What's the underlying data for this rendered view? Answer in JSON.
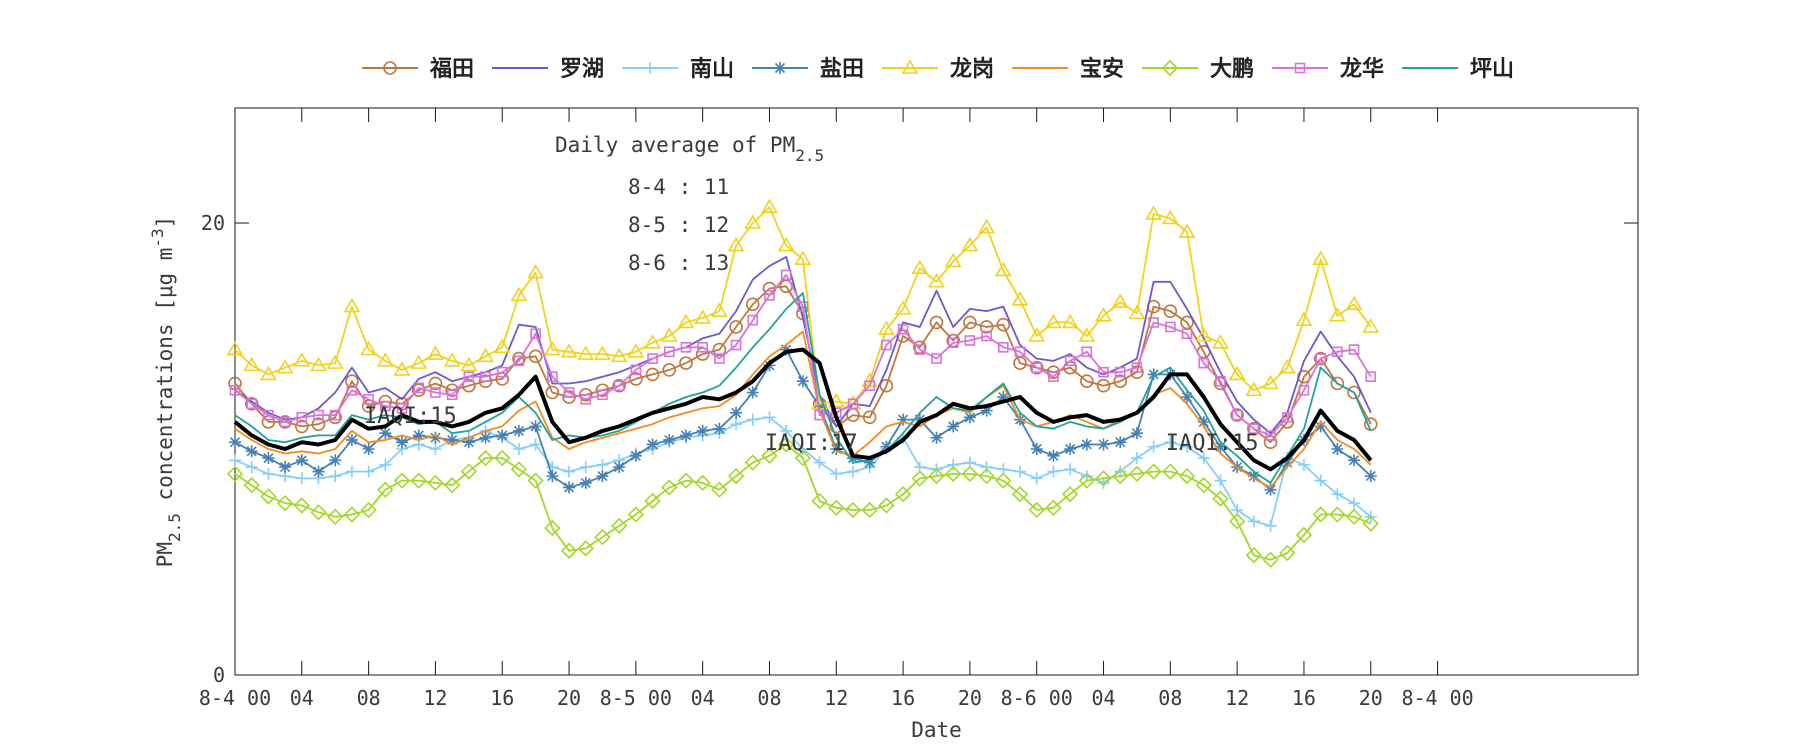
{
  "chart_data": {
    "type": "line",
    "xlabel": "Date",
    "ylabel_main": "PM",
    "ylabel_sub": "2.5",
    "ylabel_rest": " concentrations [μg m",
    "ylabel_sup": "-3",
    "ylabel_end": "]",
    "ylim": [
      0,
      25
    ],
    "xlim": [
      0,
      69
    ],
    "yticks": [
      {
        "v": 0,
        "label": "0"
      },
      {
        "v": 20,
        "label": "20"
      }
    ],
    "xticks": [
      {
        "v": 0,
        "label": "8-4 00"
      },
      {
        "v": 4,
        "label": "04"
      },
      {
        "v": 8,
        "label": "08"
      },
      {
        "v": 12,
        "label": "12"
      },
      {
        "v": 16,
        "label": "16"
      },
      {
        "v": 20,
        "label": "20"
      },
      {
        "v": 24,
        "label": "8-5 00"
      },
      {
        "v": 28,
        "label": "04"
      },
      {
        "v": 32,
        "label": "08"
      },
      {
        "v": 36,
        "label": "12"
      },
      {
        "v": 40,
        "label": "16"
      },
      {
        "v": 44,
        "label": "20"
      },
      {
        "v": 48,
        "label": "8-6 00"
      },
      {
        "v": 52,
        "label": "04"
      },
      {
        "v": 56,
        "label": "08"
      },
      {
        "v": 60,
        "label": "12"
      },
      {
        "v": 64,
        "label": "16"
      },
      {
        "v": 68,
        "label": "20"
      },
      {
        "v": 72,
        "label": "8-4 00"
      }
    ],
    "grid": false,
    "legend_position": "top",
    "annotation": {
      "title_main": "Daily average of PM",
      "title_sub": "2.5",
      "lines": [
        "8-4 : 11",
        "8-5 : 12",
        "8-6 : 13"
      ]
    },
    "iaqi_labels": [
      {
        "x": 10.5,
        "y": 11.5,
        "text": "IAQI:15"
      },
      {
        "x": 34.5,
        "y": 10.3,
        "text": "IAQI:17"
      },
      {
        "x": 58.5,
        "y": 10.3,
        "text": "IAQI:15"
      }
    ],
    "mean_series": {
      "color": "#000000",
      "values": [
        11.2,
        10.6,
        10.2,
        10.0,
        10.3,
        10.2,
        10.4,
        11.3,
        10.9,
        11.0,
        11.5,
        11.2,
        11.2,
        11.0,
        11.2,
        11.6,
        11.8,
        12.4,
        13.2,
        11.2,
        10.3,
        10.5,
        10.8,
        11.0,
        11.3,
        11.6,
        11.8,
        12.0,
        12.3,
        12.2,
        12.5,
        13.0,
        13.8,
        14.3,
        14.4,
        13.8,
        11.4,
        9.7,
        9.6,
        9.9,
        10.4,
        11.2,
        11.5,
        12.0,
        11.8,
        11.9,
        12.1,
        12.3,
        11.6,
        11.2,
        11.4,
        11.5,
        11.2,
        11.3,
        11.6,
        12.3,
        13.3,
        13.3,
        12.3,
        11.1,
        10.3,
        9.5,
        9.1,
        9.6,
        10.4,
        11.7,
        10.8,
        10.4,
        9.5
      ]
    },
    "series": [
      {
        "name": "福田",
        "color": "#c0763f",
        "marker": "circle",
        "values": [
          12.9,
          12.0,
          11.2,
          11.2,
          11.0,
          11.1,
          11.4,
          13.0,
          11.9,
          12.1,
          12.0,
          12.6,
          12.9,
          12.6,
          12.8,
          13.0,
          13.1,
          14.0,
          14.1,
          12.5,
          12.3,
          12.4,
          12.6,
          12.8,
          13.1,
          13.3,
          13.5,
          13.8,
          14.2,
          14.4,
          15.4,
          16.4,
          17.1,
          17.2,
          16.0,
          12.0,
          11.0,
          11.5,
          11.4,
          12.8,
          15.0,
          14.5,
          15.6,
          14.8,
          15.6,
          15.4,
          15.5,
          13.8,
          13.6,
          13.4,
          13.6,
          13.0,
          12.8,
          13.0,
          13.4,
          16.3,
          16.1,
          15.6,
          14.3,
          12.9,
          11.5,
          10.9,
          10.3,
          11.2,
          13.2,
          14.0,
          12.9,
          12.5,
          11.1
        ]
      },
      {
        "name": "罗湖",
        "color": "#6a5acd",
        "marker": null,
        "values": [
          12.6,
          12.1,
          11.6,
          11.3,
          11.4,
          11.8,
          12.5,
          13.6,
          12.5,
          12.7,
          12.2,
          13.1,
          13.4,
          13.0,
          13.2,
          13.4,
          13.7,
          15.5,
          15.4,
          12.9,
          12.9,
          13.0,
          13.2,
          13.4,
          13.7,
          14.0,
          14.3,
          14.5,
          14.9,
          15.1,
          16.1,
          17.5,
          18.1,
          18.5,
          15.8,
          12.4,
          11.0,
          12.0,
          11.9,
          13.5,
          15.6,
          15.4,
          17.0,
          15.4,
          16.2,
          16.1,
          16.3,
          14.6,
          14.0,
          13.9,
          14.2,
          13.6,
          13.3,
          13.6,
          14.0,
          17.4,
          17.4,
          16.2,
          14.9,
          13.4,
          12.1,
          11.3,
          10.7,
          11.6,
          13.9,
          15.2,
          14.1,
          13.2,
          11.6
        ]
      },
      {
        "name": "南山",
        "color": "#87cefa",
        "marker": "plus",
        "values": [
          9.5,
          9.2,
          8.9,
          8.8,
          8.7,
          8.7,
          8.8,
          9.0,
          9.0,
          9.3,
          10.0,
          10.2,
          10.0,
          10.4,
          10.5,
          10.8,
          10.5,
          10.0,
          10.2,
          9.2,
          9.0,
          9.2,
          9.3,
          9.5,
          9.8,
          10.0,
          10.3,
          10.5,
          10.6,
          10.7,
          11.1,
          11.3,
          11.4,
          10.8,
          10.0,
          9.4,
          8.9,
          9.0,
          9.2,
          10.0,
          10.5,
          9.2,
          9.1,
          9.3,
          9.4,
          9.2,
          9.1,
          9.0,
          8.7,
          9.0,
          9.1,
          8.8,
          8.5,
          9.0,
          9.6,
          10.1,
          10.3,
          10.1,
          9.6,
          8.6,
          7.3,
          6.8,
          6.6,
          9.6,
          9.3,
          8.6,
          8.0,
          7.6,
          7.0
        ]
      },
      {
        "name": "盐田",
        "color": "#4682b4",
        "marker": "star",
        "values": [
          10.3,
          9.9,
          9.6,
          9.2,
          9.5,
          9.0,
          9.5,
          10.4,
          10.0,
          10.7,
          10.3,
          10.6,
          10.5,
          10.4,
          10.3,
          10.5,
          10.6,
          10.8,
          11.0,
          8.8,
          8.3,
          8.5,
          8.8,
          9.2,
          9.7,
          10.2,
          10.4,
          10.6,
          10.8,
          10.9,
          11.6,
          12.5,
          13.7,
          14.4,
          13.0,
          11.9,
          10.0,
          9.6,
          9.4,
          10.1,
          11.3,
          11.3,
          10.5,
          11.0,
          11.4,
          11.7,
          12.3,
          11.3,
          10.0,
          9.7,
          10.0,
          10.2,
          10.2,
          10.3,
          10.7,
          13.3,
          13.3,
          12.3,
          11.2,
          10.1,
          9.2,
          8.8,
          8.2,
          9.4,
          10.4,
          11.0,
          10.0,
          9.5,
          8.8
        ]
      },
      {
        "name": "龙岗",
        "color": "#f2d21e",
        "marker": "triangle",
        "values": [
          14.4,
          13.7,
          13.3,
          13.6,
          13.9,
          13.7,
          13.8,
          16.3,
          14.4,
          13.9,
          13.5,
          13.8,
          14.2,
          13.9,
          13.7,
          14.1,
          14.5,
          16.8,
          17.8,
          14.4,
          14.3,
          14.2,
          14.2,
          14.1,
          14.3,
          14.7,
          15.0,
          15.6,
          15.8,
          16.1,
          19.0,
          20.0,
          20.7,
          19.0,
          18.4,
          12.0,
          12.1,
          12.0,
          13.0,
          15.3,
          16.2,
          18.0,
          17.4,
          18.3,
          19.0,
          19.8,
          17.9,
          16.6,
          15.0,
          15.6,
          15.6,
          15.0,
          15.9,
          16.5,
          16.0,
          20.4,
          20.2,
          19.6,
          15.0,
          14.7,
          13.3,
          12.6,
          12.9,
          13.6,
          15.7,
          18.4,
          15.9,
          16.4,
          15.4
        ]
      },
      {
        "name": "宝安",
        "color": "#f28c1e",
        "marker": null,
        "values": [
          10.9,
          10.4,
          10.0,
          9.8,
          9.9,
          9.8,
          10.0,
          10.8,
          10.3,
          10.4,
          10.6,
          10.4,
          10.6,
          10.2,
          10.5,
          10.8,
          11.0,
          11.7,
          12.1,
          10.5,
          10.0,
          10.3,
          10.5,
          10.7,
          10.9,
          11.1,
          11.4,
          11.6,
          11.8,
          11.9,
          12.4,
          13.3,
          14.1,
          14.6,
          15.2,
          11.7,
          9.9,
          9.7,
          10.3,
          11.0,
          11.2,
          11.0,
          11.5,
          11.8,
          11.6,
          12.3,
          12.8,
          11.3,
          11.0,
          11.2,
          11.5,
          11.2,
          10.9,
          11.3,
          11.6,
          12.4,
          12.7,
          12.0,
          11.0,
          9.8,
          9.2,
          8.7,
          8.3,
          9.2,
          10.0,
          11.2,
          10.4,
          10.0,
          9.3
        ]
      },
      {
        "name": "大鹏",
        "color": "#a2d82a",
        "marker": "diamond",
        "values": [
          8.9,
          8.4,
          7.9,
          7.6,
          7.5,
          7.2,
          7.0,
          7.1,
          7.3,
          8.2,
          8.6,
          8.6,
          8.5,
          8.4,
          9.0,
          9.6,
          9.6,
          9.1,
          8.6,
          6.5,
          5.5,
          5.6,
          6.1,
          6.6,
          7.1,
          7.7,
          8.3,
          8.6,
          8.5,
          8.2,
          8.8,
          9.4,
          9.7,
          10.2,
          9.6,
          7.7,
          7.4,
          7.3,
          7.3,
          7.5,
          8.0,
          8.7,
          8.8,
          8.9,
          8.9,
          8.8,
          8.6,
          8.0,
          7.3,
          7.4,
          8.0,
          8.6,
          8.7,
          8.8,
          8.9,
          9.0,
          9.0,
          8.8,
          8.4,
          7.8,
          6.8,
          5.3,
          5.1,
          5.4,
          6.2,
          7.1,
          7.1,
          7.0,
          6.7
        ]
      },
      {
        "name": "龙华",
        "color": "#d873d8",
        "marker": "square",
        "values": [
          12.6,
          12.0,
          11.5,
          11.2,
          11.4,
          11.5,
          11.5,
          12.6,
          12.2,
          11.9,
          11.8,
          12.7,
          12.5,
          12.4,
          13.2,
          13.2,
          13.4,
          13.9,
          15.1,
          13.2,
          12.5,
          12.2,
          12.4,
          12.8,
          13.5,
          14.0,
          14.3,
          14.5,
          14.5,
          14.0,
          14.6,
          15.7,
          16.8,
          17.7,
          16.3,
          11.5,
          11.6,
          12.0,
          12.8,
          14.6,
          15.3,
          14.4,
          14.0,
          14.7,
          14.8,
          15.0,
          14.5,
          14.3,
          13.6,
          13.2,
          13.9,
          14.3,
          13.4,
          13.4,
          13.6,
          15.6,
          15.4,
          15.1,
          13.8,
          13.0,
          11.5,
          10.9,
          10.6,
          11.4,
          12.6,
          14.0,
          14.3,
          14.4,
          13.2
        ]
      },
      {
        "name": "坪山",
        "color": "#20a39e",
        "marker": null,
        "values": [
          11.5,
          11.0,
          10.4,
          10.3,
          10.5,
          10.6,
          10.6,
          11.5,
          11.3,
          11.5,
          11.4,
          11.1,
          11.2,
          10.7,
          10.8,
          11.2,
          11.6,
          12.3,
          11.6,
          10.4,
          10.6,
          10.5,
          10.6,
          10.8,
          11.2,
          11.6,
          12.0,
          12.3,
          12.5,
          12.8,
          13.6,
          14.5,
          15.3,
          16.2,
          16.9,
          12.4,
          10.5,
          9.4,
          9.5,
          9.9,
          10.7,
          11.6,
          12.3,
          11.8,
          11.7,
          12.3,
          12.9,
          11.6,
          11.0,
          10.9,
          11.2,
          11.0,
          10.9,
          11.2,
          11.6,
          13.2,
          13.6,
          12.6,
          11.7,
          10.3,
          9.7,
          9.0,
          8.5,
          9.7,
          10.9,
          13.6,
          12.9,
          12.5,
          10.8
        ]
      }
    ]
  }
}
